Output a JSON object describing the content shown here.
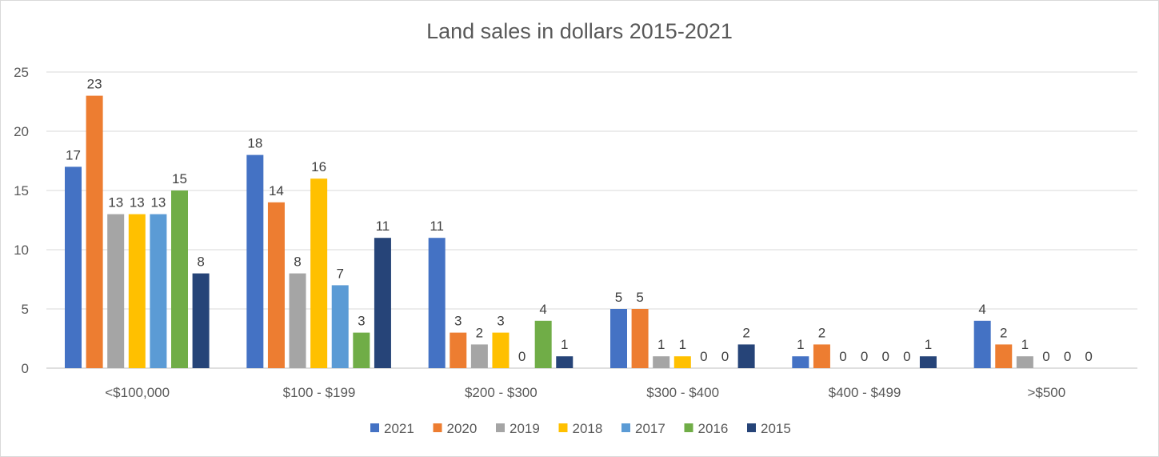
{
  "chart_data": {
    "type": "bar",
    "title": "Land sales in dollars 2015-2021",
    "categories": [
      "<$100,000",
      "$100 - $199",
      "$200 - $300",
      "$300 - $400",
      "$400 - $499",
      ">$500"
    ],
    "series": [
      {
        "name": "2021",
        "color": "#4472c4",
        "values": [
          17,
          18,
          11,
          5,
          1,
          4
        ]
      },
      {
        "name": "2020",
        "color": "#ed7d31",
        "values": [
          23,
          14,
          3,
          5,
          2,
          2
        ]
      },
      {
        "name": "2019",
        "color": "#a5a5a5",
        "values": [
          13,
          8,
          2,
          1,
          0,
          1
        ]
      },
      {
        "name": "2018",
        "color": "#ffc000",
        "values": [
          13,
          16,
          3,
          1,
          0,
          0
        ]
      },
      {
        "name": "2017",
        "color": "#5b9bd5",
        "values": [
          13,
          7,
          0,
          0,
          0,
          0
        ]
      },
      {
        "name": "2016",
        "color": "#70ad47",
        "values": [
          15,
          3,
          4,
          0,
          0,
          0
        ]
      },
      {
        "name": "2015",
        "color": "#264478",
        "values": [
          8,
          11,
          1,
          2,
          1,
          null
        ]
      }
    ],
    "ylim": [
      0,
      25
    ],
    "yticks": [
      0,
      5,
      10,
      15,
      20,
      25
    ],
    "grid": true,
    "legend": "bottom",
    "data_labels": true
  }
}
